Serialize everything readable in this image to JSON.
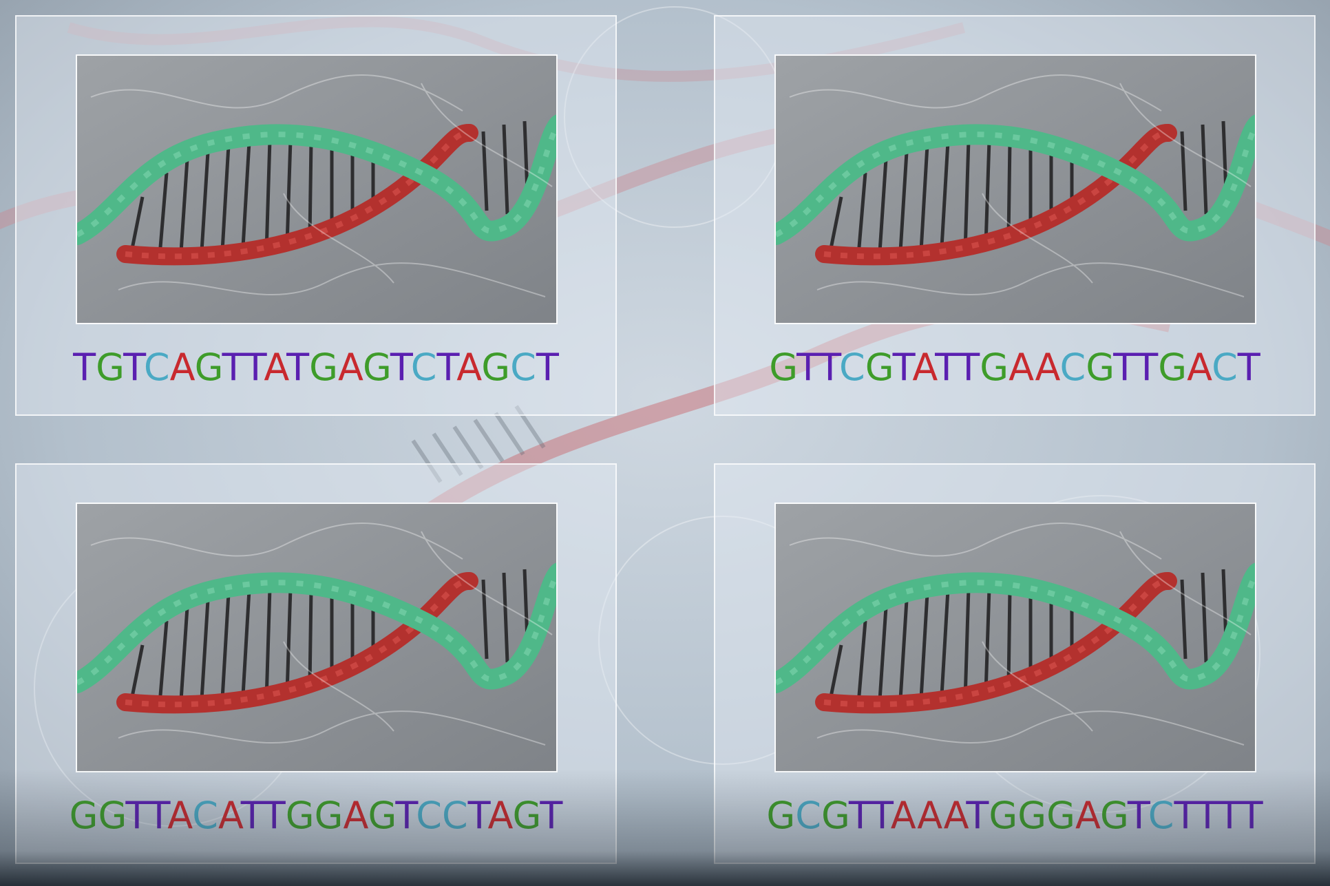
{
  "panels": [
    {
      "id": "top-left",
      "sequence": "TGTCAGTTATGAGTCTAGCT"
    },
    {
      "id": "top-right",
      "sequence": "GTTCGTATTGAACGTTGACT"
    },
    {
      "id": "bottom-left",
      "sequence": "GGTTACATTGGAGTCCTAGT"
    },
    {
      "id": "bottom-right",
      "sequence": "GCGTTAAATGGGAGTCTTTT"
    }
  ],
  "colors": {
    "T": "#5a1fb0",
    "G": "#3e9c2a",
    "C": "#4aa9c4",
    "A": "#c8292e",
    "strand_green": "#4fb889",
    "strand_red": "#b3312e",
    "background": "#b9c4cf"
  },
  "image": {
    "subject": "dna-double-helix"
  }
}
